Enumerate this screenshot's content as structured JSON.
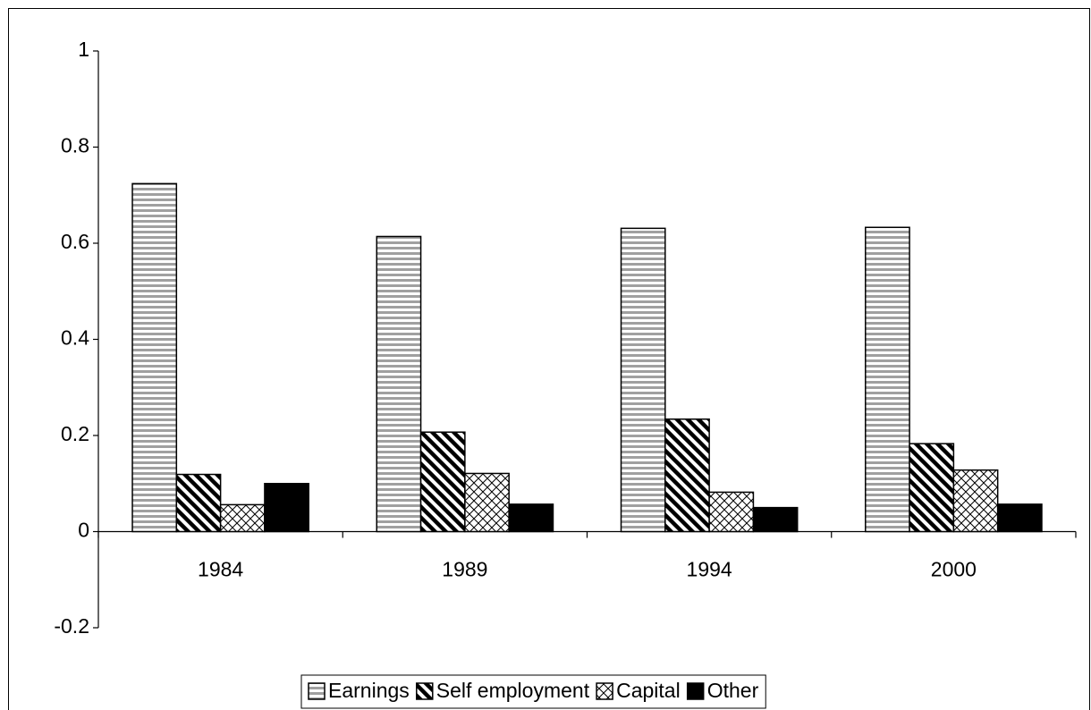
{
  "chart_data": {
    "type": "bar",
    "categories": [
      "1984",
      "1989",
      "1994",
      "2000"
    ],
    "series": [
      {
        "name": "Earnings",
        "color": "#a0a0a0",
        "pattern": "horizontal",
        "values": [
          0.724,
          0.614,
          0.631,
          0.633
        ]
      },
      {
        "name": "Self employment",
        "color": "#000000",
        "pattern": "diagonal",
        "values": [
          0.119,
          0.207,
          0.234,
          0.183
        ]
      },
      {
        "name": "Capital",
        "color": "#000000",
        "pattern": "crosshatch",
        "values": [
          0.056,
          0.121,
          0.082,
          0.128
        ]
      },
      {
        "name": "Other",
        "color": "#000000",
        "pattern": "solid",
        "values": [
          0.1,
          0.057,
          0.05,
          0.057
        ]
      }
    ],
    "ylim": [
      -0.2,
      1
    ],
    "yticks": [
      -0.2,
      0,
      0.2,
      0.4,
      0.6,
      0.8,
      1
    ],
    "grid": false,
    "legend": "bottom"
  }
}
